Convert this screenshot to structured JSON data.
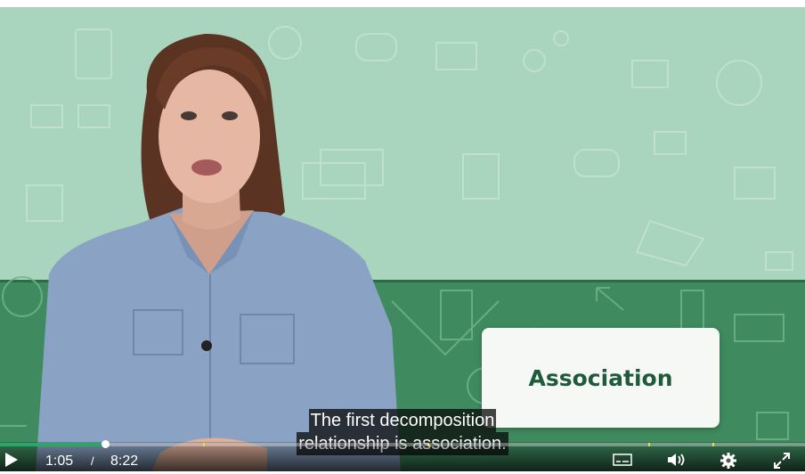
{
  "video": {
    "slide_title": "Association",
    "captions": [
      "The first decomposition",
      "relationship is association."
    ]
  },
  "player": {
    "current_time": "1:05",
    "separator": "/",
    "duration": "8:22",
    "progress_fraction": 0.13,
    "accent_color": "#2aa86a",
    "icons": {
      "play": "play-icon",
      "captions": "captions-icon",
      "volume": "volume-icon",
      "settings": "gear-icon",
      "fullscreen": "fullscreen-icon"
    }
  }
}
